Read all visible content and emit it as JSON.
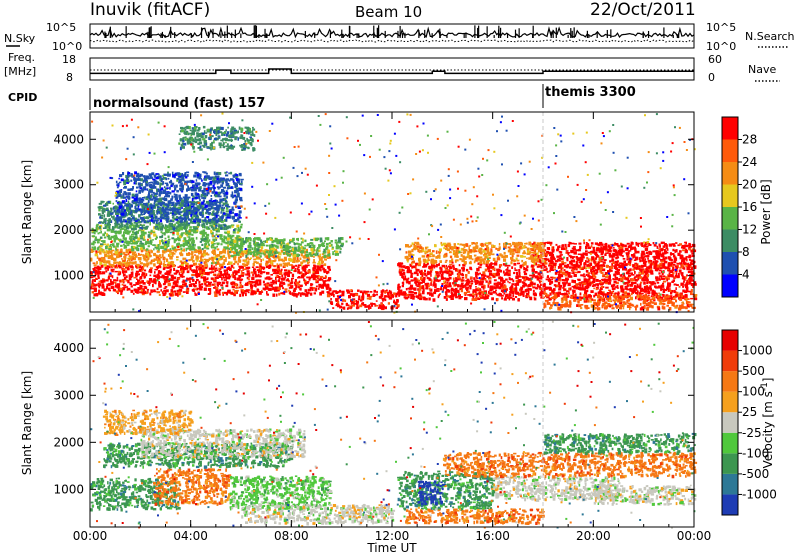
{
  "header": {
    "station": "Inuvik (fitACF)",
    "beam": "Beam 10",
    "date": "22/Oct/2011"
  },
  "top_panels": {
    "nsky_label": "N.Sky",
    "nsky_ticks": [
      "10^5",
      "10^0"
    ],
    "nsearch_label": "N.Search",
    "nsearch_ticks": [
      "10^5",
      "10^0"
    ],
    "freq_label": "Freq.",
    "freq_unit": "[MHz]",
    "freq_ticks": [
      "18",
      "8"
    ],
    "nave_label": "Nave",
    "nave_ticks": [
      "60",
      "0"
    ],
    "cpid_label": "CPID",
    "modes": [
      {
        "label": "normalsound (fast) 157",
        "start_hour": 0
      },
      {
        "label": "themis 3300",
        "start_hour": 18
      }
    ],
    "freq_steps": [
      {
        "from": 0,
        "to": 5,
        "value": 11
      },
      {
        "from": 5,
        "to": 5.6,
        "value": 12.5
      },
      {
        "from": 5.6,
        "to": 7.1,
        "value": 11
      },
      {
        "from": 7.1,
        "to": 8,
        "value": 13
      },
      {
        "from": 8,
        "to": 13.6,
        "value": 11
      },
      {
        "from": 13.6,
        "to": 14.1,
        "value": 12
      },
      {
        "from": 14.1,
        "to": 18,
        "value": 11
      },
      {
        "from": 18,
        "to": 24,
        "value": 12
      }
    ]
  },
  "chart_data": [
    {
      "type": "heatmap",
      "name": "power",
      "ylabel": "Slant Range [km]",
      "ylim": [
        200,
        4600
      ],
      "yticks": [
        "1000",
        "2000",
        "3000",
        "4000"
      ],
      "xlim": [
        0,
        24
      ],
      "colorbar_label": "Power [dB]",
      "colorbar_ticks": [
        "4",
        "8",
        "12",
        "16",
        "20",
        "24",
        "28"
      ],
      "colorbar_colors": [
        "#0000ff",
        "#1f50b0",
        "#3c8c64",
        "#59b446",
        "#e6c81e",
        "#f58c14",
        "#ff5a0a",
        "#ff0000"
      ],
      "regions": [
        {
          "x0": 0.0,
          "x1": 9.5,
          "y0": 600,
          "y1": 1250,
          "c": 7
        },
        {
          "x0": 9.5,
          "x1": 12.2,
          "y0": 300,
          "y1": 700,
          "c": 7
        },
        {
          "x0": 12.2,
          "x1": 24.0,
          "y0": 500,
          "y1": 1300,
          "c": 7
        },
        {
          "x0": 17.5,
          "x1": 24.0,
          "y0": 1200,
          "y1": 1750,
          "c": 7
        },
        {
          "x0": 0.0,
          "x1": 9.5,
          "y0": 1250,
          "y1": 1600,
          "c": 5
        },
        {
          "x0": 5.5,
          "x1": 10.0,
          "y0": 1450,
          "y1": 1850,
          "c": 3
        },
        {
          "x0": 0.0,
          "x1": 6.0,
          "y0": 1600,
          "y1": 2150,
          "c": 3
        },
        {
          "x0": 0.3,
          "x1": 5.5,
          "y0": 2050,
          "y1": 2650,
          "c": 2
        },
        {
          "x0": 1.0,
          "x1": 6.0,
          "y0": 2200,
          "y1": 3300,
          "c": 1
        },
        {
          "x0": 12.5,
          "x1": 18.0,
          "y0": 1300,
          "y1": 1750,
          "c": 5
        },
        {
          "x0": 18.0,
          "x1": 24.0,
          "y0": 300,
          "y1": 600,
          "c": 6
        },
        {
          "x0": 3.5,
          "x1": 6.5,
          "y0": 3800,
          "y1": 4300,
          "c": 2
        }
      ]
    },
    {
      "type": "heatmap",
      "name": "velocity",
      "ylabel": "Slant Range [km]",
      "ylim": [
        200,
        4600
      ],
      "yticks": [
        "1000",
        "2000",
        "3000",
        "4000"
      ],
      "xlabel": "Time UT",
      "xlim": [
        0,
        24
      ],
      "xticks": [
        "00:00",
        "04:00",
        "08:00",
        "12:00",
        "16:00",
        "20:00",
        "00:00"
      ],
      "colorbar_label": "Velocity [m s^-1]",
      "colorbar_ticks": [
        "1000",
        "500",
        "100",
        "25",
        "-25",
        "-100",
        "-500",
        "-1000"
      ],
      "colorbar_colors": [
        "#1e3cb4",
        "#2d7896",
        "#3c9650",
        "#50c83c",
        "#c8c8be",
        "#f5a01e",
        "#f57814",
        "#f03c0a",
        "#e60000"
      ],
      "regions": [
        {
          "x0": 0.0,
          "x1": 3.5,
          "y0": 600,
          "y1": 1250,
          "c": 2
        },
        {
          "x0": 2.5,
          "x1": 5.5,
          "y0": 700,
          "y1": 1450,
          "c": 6
        },
        {
          "x0": 5.5,
          "x1": 9.5,
          "y0": 600,
          "y1": 1300,
          "c": 3
        },
        {
          "x0": 6.0,
          "x1": 12.0,
          "y0": 300,
          "y1": 700,
          "c": 4
        },
        {
          "x0": 0.5,
          "x1": 8.0,
          "y0": 1500,
          "y1": 2000,
          "c": 2
        },
        {
          "x0": 2.0,
          "x1": 8.5,
          "y0": 1700,
          "y1": 2300,
          "c": 4
        },
        {
          "x0": 0.5,
          "x1": 4.0,
          "y0": 2200,
          "y1": 2700,
          "c": 5
        },
        {
          "x0": 12.2,
          "x1": 16.0,
          "y0": 600,
          "y1": 1400,
          "c": 2
        },
        {
          "x0": 13.0,
          "x1": 14.0,
          "y0": 700,
          "y1": 1200,
          "c": 0
        },
        {
          "x0": 16.0,
          "x1": 21.0,
          "y0": 800,
          "y1": 1300,
          "c": 4
        },
        {
          "x0": 20.0,
          "x1": 24.0,
          "y0": 700,
          "y1": 1100,
          "c": 4
        },
        {
          "x0": 14.0,
          "x1": 24.0,
          "y0": 1300,
          "y1": 1800,
          "c": 6
        },
        {
          "x0": 18.0,
          "x1": 24.0,
          "y0": 1800,
          "y1": 2200,
          "c": 2
        },
        {
          "x0": 12.5,
          "x1": 18.0,
          "y0": 300,
          "y1": 600,
          "c": 6
        }
      ]
    }
  ]
}
